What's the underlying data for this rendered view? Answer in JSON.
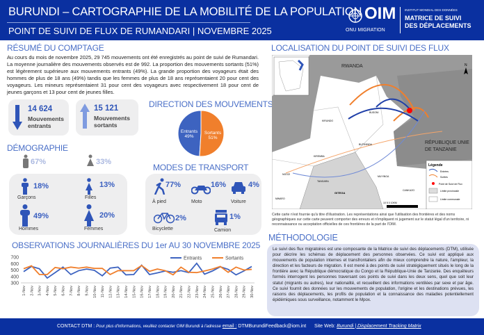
{
  "header": {
    "title": "BURUNDI – CARTOGRAPHIE DE LA MOBILITÉ DE LA POPULATION",
    "subtitle": "POINT DE SUIVI DE FLUX DE RUMANDARI | NOVEMBRE 2025",
    "logo_text": "OIM",
    "logo_sub": "ONU MIGRATION",
    "dtm_small": "INSTITUT MONDIAL DES DONNÉES",
    "dtm_line1": "MATRICE DE SUIVI",
    "dtm_line2": "DES DÉPLACEMENTS"
  },
  "resume": {
    "title": "RÉSUMÉ DU COMPTAGE",
    "text": "Au cours du mois de novembre 2025, 29 745 mouvements ont été enregistrés au point de suivi de Rumandari. La moyenne journalière des mouvements observés est de 992. La proportion des mouvements sortants (51%) est légèrement supérieure aux mouvements entrants (49%). La grande proportion des voyageurs était des hommes de plus de 18 ans (49%) tandis que les femmes de plus de 18 ans représentaient 20 pour cent des voyageurs. Les mineurs représentaient 31 pour cent des voyageurs avec respectivement 18 pour cent de jeunes garçons et 13 pour cent de jeunes filles."
  },
  "stats": {
    "entrants": {
      "value": "14 624",
      "label1": "Mouvements",
      "label2": "entrants"
    },
    "sortants": {
      "value": "15 121",
      "label1": "Mouvements",
      "label2": "sortants"
    }
  },
  "direction": {
    "title": "DIRECTION DES MOUVEMENTS",
    "entrants_label": "Entrants",
    "entrants_pct": "49%",
    "entrants_value": 49,
    "sortants_label": "Sortants",
    "sortants_pct": "51%",
    "sortants_value": 51,
    "colors": {
      "entrants": "#3d63c0",
      "sortants": "#f07f2c"
    }
  },
  "demo": {
    "title": "DÉMOGRAPHIE",
    "male": "67%",
    "female": "33%",
    "garcons": {
      "pct": "18%",
      "label": "Garçons"
    },
    "filles": {
      "pct": "13%",
      "label": "Filles"
    },
    "hommes": {
      "pct": "49%",
      "label": "Hommes"
    },
    "femmes": {
      "pct": "20%",
      "label": "Femmes"
    }
  },
  "transport": {
    "title": "MODES DE TRANSPORT",
    "pied": {
      "pct": "77%",
      "label": "À pied"
    },
    "moto": {
      "pct": "16%",
      "label": "Moto"
    },
    "voiture": {
      "pct": "4%",
      "label": "Voiture"
    },
    "bicyclette": {
      "pct": "2%",
      "label": "Bicyclette"
    },
    "camion": {
      "pct": "1%",
      "label": "Camion"
    }
  },
  "chart_data": {
    "type": "line",
    "title": "OBSERVATIONS JOURNALIÈRES DU 1er AU 30 NOVEMBRE 2025",
    "ylim": [
      300,
      700
    ],
    "yticks": [
      300,
      400,
      500,
      600,
      700
    ],
    "legend": "top-right",
    "grid": false,
    "categories": [
      "1-Nov",
      "2-Nov",
      "3-Nov",
      "4-Nov",
      "5-Nov",
      "6-Nov",
      "7-Nov",
      "8-Nov",
      "9-Nov",
      "10-Nov",
      "11-Nov",
      "12-Nov",
      "13-Nov",
      "14-Nov",
      "15-Nov",
      "16-Nov",
      "17-Nov",
      "18-Nov",
      "19-Nov",
      "20-Nov",
      "21-Nov",
      "22-Nov",
      "23-Nov",
      "24-Nov",
      "25-Nov",
      "26-Nov",
      "27-Nov",
      "28-Nov",
      "29-Nov",
      "30-Nov"
    ],
    "series": [
      {
        "name": "Entrants",
        "color": "#3d63c0",
        "values": [
          475,
          555,
          520,
          375,
          460,
          545,
          430,
          490,
          515,
          495,
          410,
          530,
          545,
          425,
          430,
          575,
          430,
          455,
          485,
          465,
          490,
          460,
          605,
          435,
          485,
          550,
          510,
          425,
          485,
          555
        ]
      },
      {
        "name": "Sortants",
        "color": "#f07f2c",
        "values": [
          520,
          565,
          430,
          430,
          540,
          520,
          545,
          530,
          545,
          525,
          525,
          430,
          490,
          490,
          490,
          570,
          480,
          515,
          490,
          425,
          545,
          465,
          460,
          485,
          515,
          555,
          465,
          545,
          500,
          510
        ]
      }
    ]
  },
  "map": {
    "title": "LOCALISATION DU POINT DE SUIVI DES FLUX",
    "rwanda": "RWANDA",
    "tanzanie1": "RÉPUBLIQUE UNIE",
    "tanzanie2": "DE TANZANIE",
    "places": [
      "BUSONI",
      "KIRUNDO",
      "BUTIHINDA",
      "KIREMBA",
      "NGOZI",
      "TANGARA",
      "MUYINGA",
      "GITEGA",
      "MWARO",
      "CANKUZO"
    ],
    "north": "N",
    "legend": {
      "title": "Légende",
      "entrees": "Entrées",
      "sorties": "Sorties",
      "point": "Point de Suivi de Flux",
      "prov": "Limite provinciale",
      "comm": "Limite communale"
    },
    "scale": "10 5 0 10KM",
    "disclaimer": "Cette carte n'est fournie qu'à titre d'illustration. Les représentations ainsi que l'utilisation des frontières et des noms géographiques sur cette carte peuvent comporter des erreurs et n'impliquent ni jugement sur le statut légal d'un territoire, ni reconnaissance ou acceptation officielles de ces frontières de la part de l'OIM."
  },
  "methodo": {
    "title": "MÉTHODOLOGIE",
    "text": "Le suivi des flux migratoires est une composante de la Matrice de suivi des déplacements (DTM), utilisée pour décrire les schémas de déplacement des personnes observées. Ce suivi est appliqué aux mouvements de population internes et transfrontaliers afin de mieux comprendre la nature, l'ampleur, la direction et les facteurs de migration. Il est mené à des points de suivi stratégiquement situés le long de la frontière avec la République démocratique du Congo et la République-Unie de Tanzanie. Des enquêteurs formés interrogent les personnes traversant ces points de suivi dans les deux sens, quel que soit leur statut (migrants ou autres), leur nationalité, et recueillent des informations ventilées par sexe et par âge. Ce suivi fournit des données sur les mouvements de population, l'origine et les destinations prévues, les raisons des déplacements, les profils de population et la connaissance des maladies potentiellement épidémiques sous surveillance, notamment le Mpox."
  },
  "footer": {
    "contact": "CONTACT DTM :",
    "contact_text": "Pour plus d'informations, veuillez contacter OIM Burundi à l'adresse",
    "email_label": "email :",
    "email": "DTMBurundiFeedback@iom.int",
    "site_label": "Site Web:",
    "site_link": "Burundi | Displacement Tracking Matrix"
  }
}
